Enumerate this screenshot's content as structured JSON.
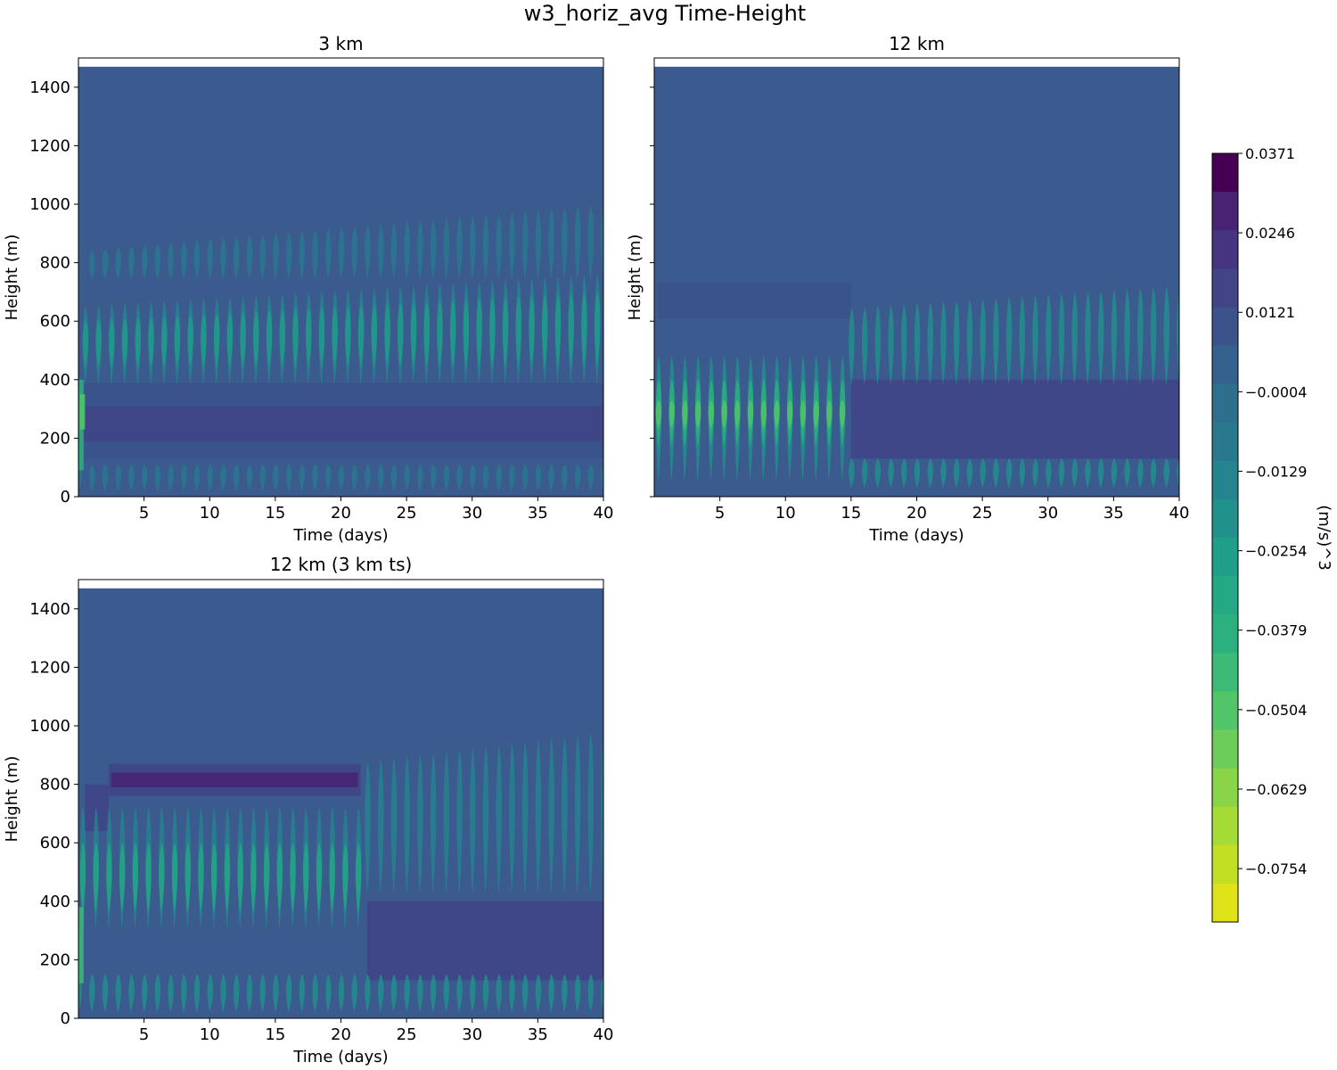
{
  "figure": {
    "title": "w3_horiz_avg Time-Height"
  },
  "colors": {
    "background_level": "#3b5b8f",
    "above_domain": "#ffffff",
    "axis": "#000000"
  },
  "chart_data": [
    {
      "type": "heatmap",
      "title": "3 km",
      "xlabel": "Time (days)",
      "ylabel": "Height (m)",
      "xlim": [
        0,
        40
      ],
      "ylim": [
        0,
        1500
      ],
      "data_top": 1470,
      "xticks": [
        5,
        10,
        15,
        20,
        25,
        30,
        35,
        40
      ],
      "yticks": [
        0,
        200,
        400,
        600,
        800,
        1000,
        1200,
        1400
      ],
      "show_ytick_labels": true,
      "features": [
        {
          "kind": "band",
          "z0": 130,
          "z1": 390,
          "t0": 0,
          "t1": 40,
          "level": 4
        },
        {
          "kind": "band",
          "z0": 190,
          "z1": 310,
          "t0": 0,
          "t1": 40,
          "level": 3
        },
        {
          "kind": "streaks",
          "t0": 0.5,
          "t1": 40,
          "period": 1,
          "z0": 380,
          "z1": 650,
          "z1_end": 760,
          "level": 8
        },
        {
          "kind": "streaks",
          "t0": 0.5,
          "t1": 40,
          "period": 1,
          "z0": 440,
          "z1": 600,
          "z1_end": 700,
          "level": 10
        },
        {
          "kind": "streaks",
          "t0": 1,
          "t1": 40,
          "period": 1,
          "z0": 740,
          "z1": 840,
          "z1_end": 1000,
          "level": 7
        },
        {
          "kind": "streaks",
          "t0": 0,
          "t1": 40,
          "period": 1,
          "z0": 20,
          "z1": 110,
          "z1_end": 110,
          "level": 7
        },
        {
          "kind": "patch",
          "t0": 0,
          "t1": 0.4,
          "z0": 90,
          "z1": 400,
          "level": 12
        },
        {
          "kind": "patch",
          "t0": 0.1,
          "t1": 0.5,
          "z0": 230,
          "z1": 350,
          "level": 14
        }
      ]
    },
    {
      "type": "heatmap",
      "title": "12 km",
      "xlabel": "Time (days)",
      "ylabel": "Height (m)",
      "xlim": [
        0,
        40
      ],
      "ylim": [
        0,
        1500
      ],
      "data_top": 1470,
      "xticks": [
        5,
        10,
        15,
        20,
        25,
        30,
        35,
        40
      ],
      "yticks": [
        0,
        200,
        400,
        600,
        800,
        1000,
        1200,
        1400
      ],
      "show_ytick_labels": false,
      "features": [
        {
          "kind": "band",
          "z0": 610,
          "z1": 730,
          "t0": 0.3,
          "t1": 15,
          "level": 4
        },
        {
          "kind": "band",
          "z0": 130,
          "z1": 400,
          "t0": 15,
          "t1": 40,
          "level": 3
        },
        {
          "kind": "streaks",
          "t0": 0.3,
          "t1": 15,
          "period": 1,
          "z0": 50,
          "z1": 480,
          "z1_end": 480,
          "level": 9
        },
        {
          "kind": "streaks",
          "t0": 0.3,
          "t1": 15,
          "period": 1,
          "z0": 170,
          "z1": 400,
          "z1_end": 400,
          "level": 12
        },
        {
          "kind": "streaks",
          "t0": 0.3,
          "t1": 15,
          "period": 1,
          "z0": 230,
          "z1": 330,
          "z1_end": 330,
          "level": 14
        },
        {
          "kind": "streaks",
          "t0": 15,
          "t1": 40,
          "period": 1,
          "z0": 380,
          "z1": 600,
          "z1_end": 720,
          "level": 9
        },
        {
          "kind": "streaks",
          "t0": 15,
          "t1": 40,
          "period": 1,
          "z0": 30,
          "z1": 130,
          "z1_end": 130,
          "level": 9
        }
      ]
    },
    {
      "type": "heatmap",
      "title": "12 km (3 km ts)",
      "xlabel": "Time (days)",
      "ylabel": "Height (m)",
      "xlim": [
        0,
        40
      ],
      "ylim": [
        0,
        1500
      ],
      "data_top": 1470,
      "xticks": [
        5,
        10,
        15,
        20,
        25,
        30,
        35,
        40
      ],
      "yticks": [
        0,
        200,
        400,
        600,
        800,
        1000,
        1200,
        1400
      ],
      "show_ytick_labels": true,
      "features": [
        {
          "kind": "band",
          "z0": 760,
          "z1": 870,
          "t0": 2.3,
          "t1": 21.5,
          "level": 3
        },
        {
          "kind": "band",
          "z0": 790,
          "z1": 840,
          "t0": 2.5,
          "t1": 21.3,
          "level": 1
        },
        {
          "kind": "patch",
          "t0": 0.5,
          "t1": 2.3,
          "z0": 640,
          "z1": 800,
          "level": 3
        },
        {
          "kind": "band",
          "z0": 130,
          "z1": 400,
          "t0": 22,
          "t1": 40,
          "level": 3
        },
        {
          "kind": "streaks",
          "t0": 0.3,
          "t1": 22,
          "period": 1,
          "z0": 300,
          "z1": 720,
          "z1_end": 720,
          "level": 8
        },
        {
          "kind": "streaks",
          "t0": 0.3,
          "t1": 22,
          "period": 1,
          "z0": 360,
          "z1": 600,
          "z1_end": 600,
          "level": 11
        },
        {
          "kind": "streaks",
          "t0": 22,
          "t1": 40,
          "period": 1,
          "z0": 420,
          "z1": 750,
          "z1_end": 980,
          "level": 8
        },
        {
          "kind": "streaks",
          "t0": 0,
          "t1": 40,
          "period": 1,
          "z0": 20,
          "z1": 150,
          "z1_end": 150,
          "level": 9
        },
        {
          "kind": "patch",
          "t0": 0,
          "t1": 0.4,
          "z0": 120,
          "z1": 380,
          "level": 13
        }
      ]
    }
  ],
  "colorbar": {
    "label": "(m/s)^3",
    "vmin": -0.0838,
    "vmax": 0.0371,
    "tick_values": [
      0.0371,
      0.0246,
      0.0121,
      -0.0004,
      -0.0129,
      -0.0254,
      -0.0379,
      -0.0504,
      -0.0629,
      -0.0754
    ],
    "tick_labels": [
      "0.0371",
      "0.0246",
      "0.0121",
      "−0.0004",
      "−0.0129",
      "−0.0254",
      "−0.0379",
      "−0.0504",
      "−0.0629",
      "−0.0754"
    ],
    "levels": [
      "#440154",
      "#482374",
      "#463480",
      "#414487",
      "#3b528b",
      "#34618d",
      "#2e6e8e",
      "#29798e",
      "#25858e",
      "#21918c",
      "#1f9e89",
      "#23a983",
      "#2cb17e",
      "#3bbb75",
      "#52c569",
      "#6ccd5a",
      "#89d548",
      "#a5db36",
      "#c2df23",
      "#dfe318"
    ]
  }
}
